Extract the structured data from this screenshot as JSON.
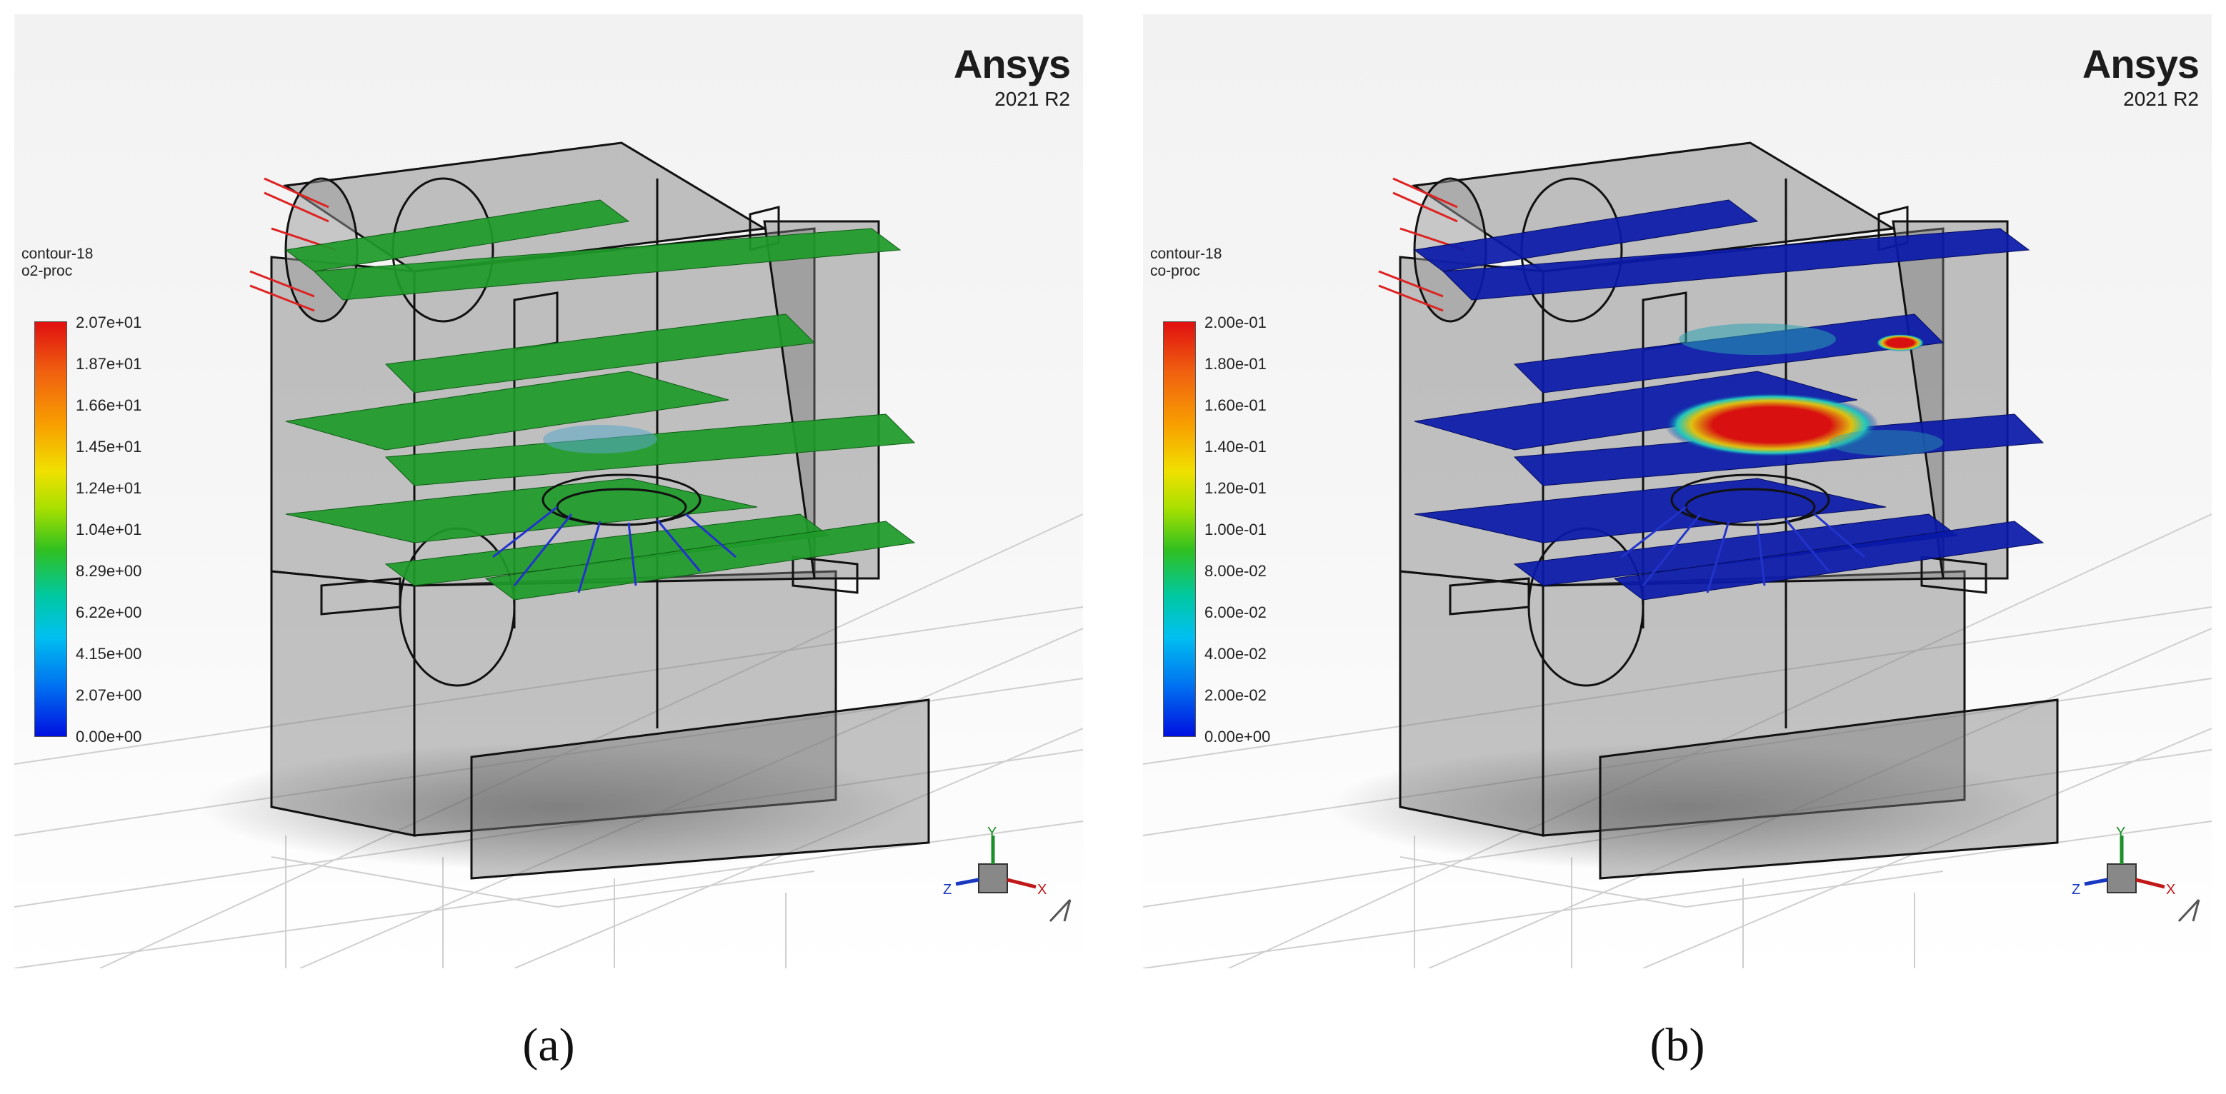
{
  "panels": [
    {
      "brand": "Ansys",
      "version": "2021 R2",
      "legend_title": "contour-18",
      "variable": "o2-proc",
      "ticks": [
        "2.07e+01",
        "1.87e+01",
        "1.66e+01",
        "1.45e+01",
        "1.24e+01",
        "1.04e+01",
        "8.29e+00",
        "6.22e+00",
        "4.15e+00",
        "2.07e+00",
        "0.00e+00"
      ],
      "caption": "(a)",
      "slice_color": "#1f9a2a"
    },
    {
      "brand": "Ansys",
      "version": "2021 R2",
      "legend_title": "contour-18",
      "variable": "co-proc",
      "ticks": [
        "2.00e-01",
        "1.80e-01",
        "1.60e-01",
        "1.40e-01",
        "1.20e-01",
        "1.00e-01",
        "8.00e-02",
        "6.00e-02",
        "4.00e-02",
        "2.00e-02",
        "0.00e+00"
      ],
      "caption": "(b)",
      "slice_color": "#0a1aa8"
    }
  ],
  "axis_labels": {
    "x": "X",
    "y": "Y",
    "z": "Z"
  }
}
